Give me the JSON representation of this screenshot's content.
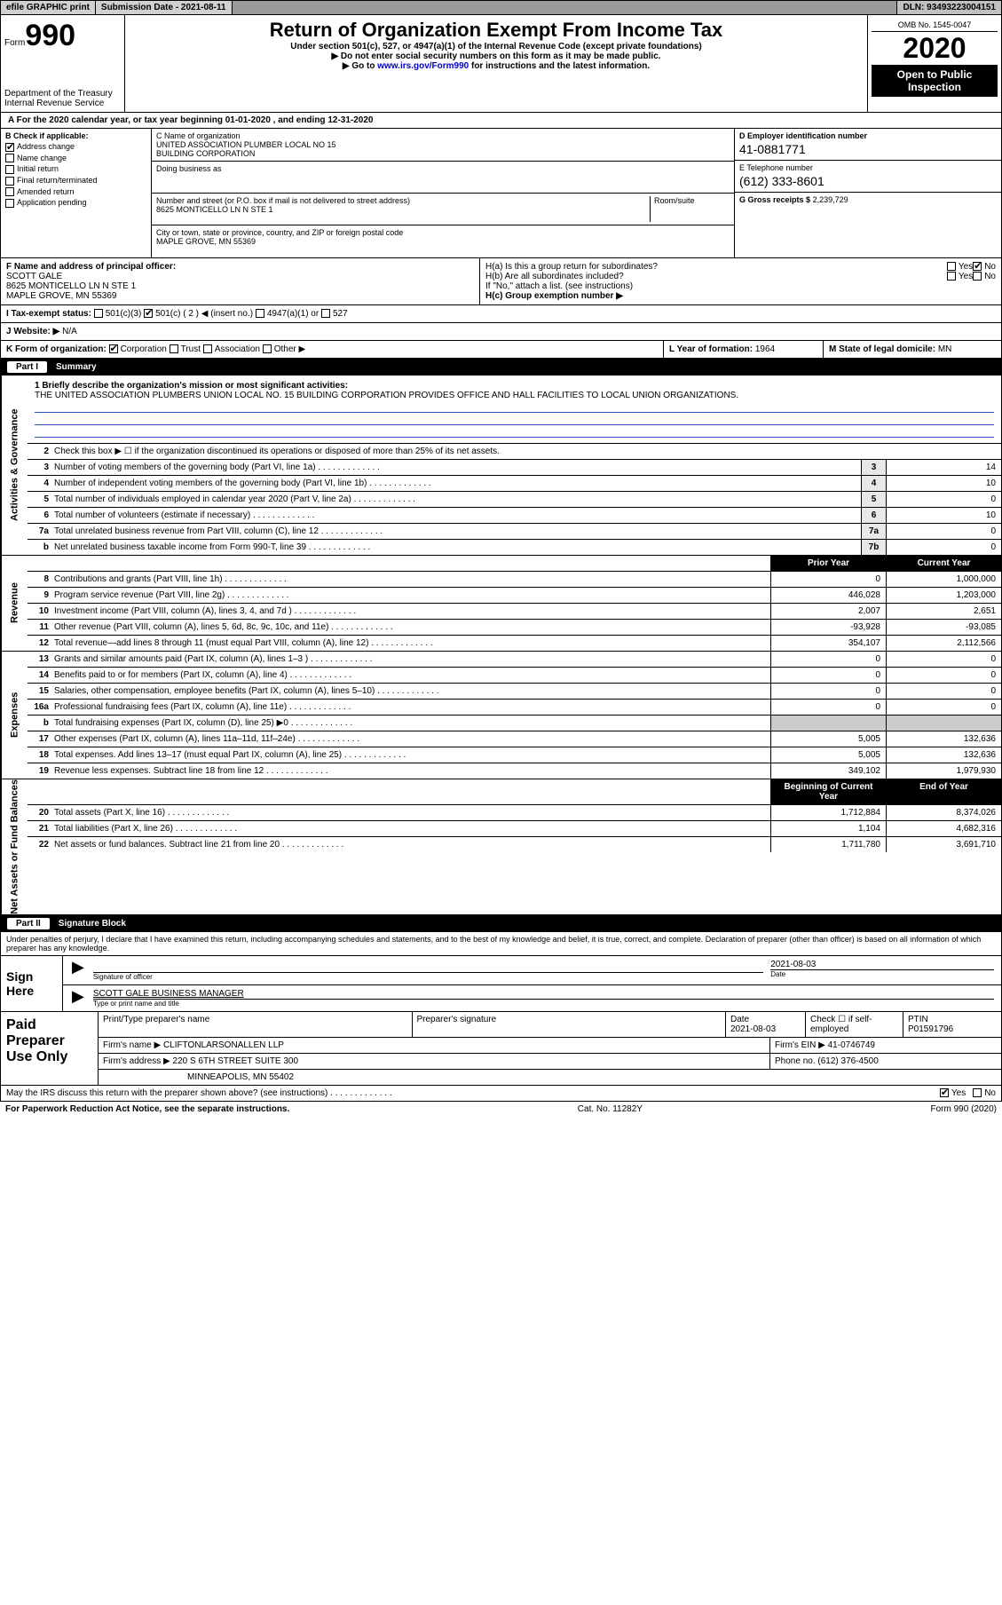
{
  "topbar": {
    "efile": "efile GRAPHIC print",
    "submission_label": "Submission Date - 2021-08-11",
    "dln": "DLN: 93493223004151"
  },
  "header": {
    "form_prefix": "Form",
    "form_number": "990",
    "dept": "Department of the Treasury\nInternal Revenue Service",
    "title": "Return of Organization Exempt From Income Tax",
    "subtitle": "Under section 501(c), 527, or 4947(a)(1) of the Internal Revenue Code (except private foundations)",
    "note1": "Do not enter social security numbers on this form as it may be made public.",
    "note2_pre": "Go to ",
    "note2_link": "www.irs.gov/Form990",
    "note2_post": " for instructions and the latest information.",
    "omb": "OMB No. 1545-0047",
    "year": "2020",
    "open": "Open to Public Inspection"
  },
  "taxyear": "A For the 2020 calendar year, or tax year beginning 01-01-2020    , and ending 12-31-2020",
  "boxB": {
    "label": "B Check if applicable:",
    "items": [
      "Address change",
      "Name change",
      "Initial return",
      "Final return/terminated",
      "Amended return",
      "Application pending"
    ],
    "checked": [
      true,
      false,
      false,
      false,
      false,
      false
    ]
  },
  "boxC": {
    "name_label": "C Name of organization",
    "name": "UNITED ASSOCIATION PLUMBER LOCAL NO 15\nBUILDING CORPORATION",
    "dba_label": "Doing business as",
    "dba": "",
    "street_label": "Number and street (or P.O. box if mail is not delivered to street address)",
    "room_label": "Room/suite",
    "street": "8625 MONTICELLO LN N STE 1",
    "city_label": "City or town, state or province, country, and ZIP or foreign postal code",
    "city": "MAPLE GROVE, MN  55369"
  },
  "boxD": {
    "label": "D Employer identification number",
    "val": "41-0881771"
  },
  "boxE": {
    "label": "E Telephone number",
    "val": "(612) 333-8601"
  },
  "boxG": {
    "label": "G Gross receipts $",
    "val": "2,239,729"
  },
  "boxF": {
    "label": "F  Name and address of principal officer:",
    "name": "SCOTT GALE",
    "addr1": "8625 MONTICELLO LN N STE 1",
    "addr2": "MAPLE GROVE, MN  55369"
  },
  "boxH": {
    "a": "H(a)  Is this a group return for subordinates?",
    "a_yes": "Yes",
    "a_no": "No",
    "a_checked": "No",
    "b": "H(b)  Are all subordinates included?",
    "b_yes": "Yes",
    "b_no": "No",
    "b_note": "If \"No,\" attach a list. (see instructions)",
    "c": "H(c)  Group exemption number ▶"
  },
  "boxI": {
    "label": "I  Tax-exempt status:",
    "opts": [
      "501(c)(3)",
      "501(c) ( 2 ) ◀ (insert no.)",
      "4947(a)(1) or",
      "527"
    ],
    "checked_index": 1
  },
  "boxJ": {
    "label": "J   Website: ▶",
    "val": "N/A"
  },
  "boxK": {
    "label": "K Form of organization:",
    "opts": [
      "Corporation",
      "Trust",
      "Association",
      "Other ▶"
    ],
    "checked_index": 0
  },
  "boxL": {
    "label": "L Year of formation:",
    "val": "1964"
  },
  "boxM": {
    "label": "M State of legal domicile:",
    "val": "MN"
  },
  "part1": {
    "num": "Part I",
    "title": "Summary"
  },
  "mission": {
    "label": "1  Briefly describe the organization's mission or most significant activities:",
    "text": "THE UNITED ASSOCIATION PLUMBERS UNION LOCAL NO. 15 BUILDING CORPORATION PROVIDES OFFICE AND HALL FACILITIES TO LOCAL UNION ORGANIZATIONS."
  },
  "activities": {
    "side": "Activities & Governance",
    "line2": "Check this box ▶ ☐ if the organization discontinued its operations or disposed of more than 25% of its net assets.",
    "rows": [
      {
        "n": "3",
        "t": "Number of voting members of the governing body (Part VI, line 1a)",
        "box": "3",
        "v": "14"
      },
      {
        "n": "4",
        "t": "Number of independent voting members of the governing body (Part VI, line 1b)",
        "box": "4",
        "v": "10"
      },
      {
        "n": "5",
        "t": "Total number of individuals employed in calendar year 2020 (Part V, line 2a)",
        "box": "5",
        "v": "0"
      },
      {
        "n": "6",
        "t": "Total number of volunteers (estimate if necessary)",
        "box": "6",
        "v": "10"
      },
      {
        "n": "7a",
        "t": "Total unrelated business revenue from Part VIII, column (C), line 12",
        "box": "7a",
        "v": "0"
      },
      {
        "n": "b",
        "t": "Net unrelated business taxable income from Form 990-T, line 39",
        "box": "7b",
        "v": "0"
      }
    ]
  },
  "revenue": {
    "side": "Revenue",
    "head_prior": "Prior Year",
    "head_curr": "Current Year",
    "rows": [
      {
        "n": "8",
        "t": "Contributions and grants (Part VIII, line 1h)",
        "p": "0",
        "c": "1,000,000"
      },
      {
        "n": "9",
        "t": "Program service revenue (Part VIII, line 2g)",
        "p": "446,028",
        "c": "1,203,000"
      },
      {
        "n": "10",
        "t": "Investment income (Part VIII, column (A), lines 3, 4, and 7d )",
        "p": "2,007",
        "c": "2,651"
      },
      {
        "n": "11",
        "t": "Other revenue (Part VIII, column (A), lines 5, 6d, 8c, 9c, 10c, and 11e)",
        "p": "-93,928",
        "c": "-93,085"
      },
      {
        "n": "12",
        "t": "Total revenue—add lines 8 through 11 (must equal Part VIII, column (A), line 12)",
        "p": "354,107",
        "c": "2,112,566"
      }
    ]
  },
  "expenses": {
    "side": "Expenses",
    "rows": [
      {
        "n": "13",
        "t": "Grants and similar amounts paid (Part IX, column (A), lines 1–3 )",
        "p": "0",
        "c": "0"
      },
      {
        "n": "14",
        "t": "Benefits paid to or for members (Part IX, column (A), line 4)",
        "p": "0",
        "c": "0"
      },
      {
        "n": "15",
        "t": "Salaries, other compensation, employee benefits (Part IX, column (A), lines 5–10)",
        "p": "0",
        "c": "0"
      },
      {
        "n": "16a",
        "t": "Professional fundraising fees (Part IX, column (A), line 11e)",
        "p": "0",
        "c": "0"
      },
      {
        "n": "b",
        "t": "Total fundraising expenses (Part IX, column (D), line 25) ▶0",
        "p": "",
        "c": "",
        "shaded": true
      },
      {
        "n": "17",
        "t": "Other expenses (Part IX, column (A), lines 11a–11d, 11f–24e)",
        "p": "5,005",
        "c": "132,636"
      },
      {
        "n": "18",
        "t": "Total expenses. Add lines 13–17 (must equal Part IX, column (A), line 25)",
        "p": "5,005",
        "c": "132,636"
      },
      {
        "n": "19",
        "t": "Revenue less expenses. Subtract line 18 from line 12",
        "p": "349,102",
        "c": "1,979,930"
      }
    ]
  },
  "netassets": {
    "side": "Net Assets or Fund Balances",
    "head_prior": "Beginning of Current Year",
    "head_curr": "End of Year",
    "rows": [
      {
        "n": "20",
        "t": "Total assets (Part X, line 16)",
        "p": "1,712,884",
        "c": "8,374,026"
      },
      {
        "n": "21",
        "t": "Total liabilities (Part X, line 26)",
        "p": "1,104",
        "c": "4,682,316"
      },
      {
        "n": "22",
        "t": "Net assets or fund balances. Subtract line 21 from line 20",
        "p": "1,711,780",
        "c": "3,691,710"
      }
    ]
  },
  "part2": {
    "num": "Part II",
    "title": "Signature Block"
  },
  "declaration": "Under penalties of perjury, I declare that I have examined this return, including accompanying schedules and statements, and to the best of my knowledge and belief, it is true, correct, and complete. Declaration of preparer (other than officer) is based on all information of which preparer has any knowledge.",
  "sign": {
    "label": "Sign Here",
    "sig_cap": "Signature of officer",
    "date": "2021-08-03",
    "date_cap": "Date",
    "name": "SCOTT GALE  BUSINESS MANAGER",
    "name_cap": "Type or print name and title"
  },
  "preparer": {
    "label": "Paid Preparer Use Only",
    "r1": {
      "c1": "Print/Type preparer's name",
      "c2": "Preparer's signature",
      "c3_label": "Date",
      "c3": "2021-08-03",
      "c4": "Check ☐ if self-employed",
      "c5_label": "PTIN",
      "c5": "P01591796"
    },
    "r2": {
      "label": "Firm's name    ▶",
      "val": "CLIFTONLARSONALLEN LLP",
      "ein_label": "Firm's EIN ▶",
      "ein": "41-0746749"
    },
    "r3": {
      "label": "Firm's address ▶",
      "val": "220 S 6TH STREET SUITE 300",
      "ph_label": "Phone no.",
      "ph": "(612) 376-4500"
    },
    "r4": {
      "val": "MINNEAPOLIS, MN  55402"
    }
  },
  "discuss": {
    "q": "May the IRS discuss this return with the preparer shown above? (see instructions)",
    "yes": "Yes",
    "no": "No",
    "checked": "Yes"
  },
  "footer": {
    "left": "For Paperwork Reduction Act Notice, see the separate instructions.",
    "mid": "Cat. No. 11282Y",
    "right": "Form 990 (2020)"
  },
  "colors": {
    "bg": "#ffffff",
    "black": "#000000",
    "gray_bar": "#c0c0c0",
    "shade": "#cccccc",
    "link": "#0000cc",
    "rule_blue": "#3050c0"
  }
}
